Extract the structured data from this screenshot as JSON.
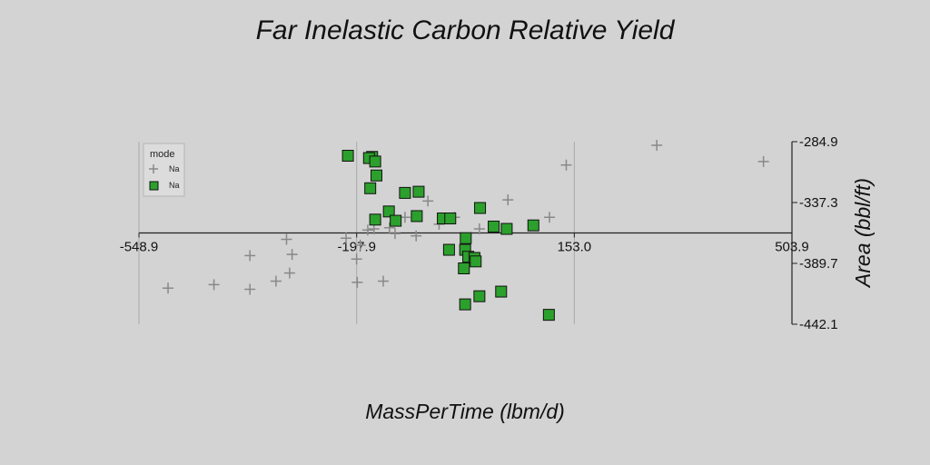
{
  "chart_data": {
    "type": "scatter",
    "title": "Far Inelastic Carbon Relative Yield",
    "xlabel": "MassPerTime (lbm/d)",
    "ylabel": "Area (bbl/ft)",
    "xlim": [
      -548.9,
      503.9
    ],
    "ylim": [
      -442.1,
      -284.9
    ],
    "x_ticks": [
      "-548.9",
      "-197.9",
      "153.0",
      "503.9"
    ],
    "y_ticks": [
      "-284.9",
      "-337.3",
      "-389.7",
      "-442.1"
    ],
    "x_axis_at_y": -363.5,
    "grid": true,
    "legend": {
      "title": "mode",
      "position": "top-left",
      "entries": [
        {
          "label": "Na",
          "marker": "plus",
          "color": "#888888"
        },
        {
          "label": "Na",
          "marker": "square",
          "color": "#2ca02c"
        }
      ]
    },
    "series": [
      {
        "marker": "plus",
        "color": "#888888",
        "points": [
          [
            -502,
            -411
          ],
          [
            -428,
            -408
          ],
          [
            -370,
            -412
          ],
          [
            -328,
            -405
          ],
          [
            -306,
            -398
          ],
          [
            -302,
            -382
          ],
          [
            -311,
            -369
          ],
          [
            -370,
            -383
          ],
          [
            -192,
            -374
          ],
          [
            -198,
            -386
          ],
          [
            -197,
            -406
          ],
          [
            -155,
            -405
          ],
          [
            -180,
            -361
          ],
          [
            -215,
            -368
          ],
          [
            -136,
            -364
          ],
          [
            -102,
            -366
          ],
          [
            -170,
            -360
          ],
          [
            -145,
            -359
          ],
          [
            -120,
            -350
          ],
          [
            -83,
            -336
          ],
          [
            -65,
            -356
          ],
          [
            -40,
            -350
          ],
          [
            0,
            -360
          ],
          [
            46,
            -335
          ],
          [
            113,
            -350
          ],
          [
            140,
            -305
          ],
          [
            286,
            -288
          ],
          [
            458,
            -302
          ]
        ]
      },
      {
        "marker": "square",
        "color": "#2ca02c",
        "points": [
          [
            -212,
            -297
          ],
          [
            -173,
            -298
          ],
          [
            -178,
            -299
          ],
          [
            -168,
            -302
          ],
          [
            -166,
            -314
          ],
          [
            -176,
            -325
          ],
          [
            -168,
            -352
          ],
          [
            -146,
            -345
          ],
          [
            -135,
            -353
          ],
          [
            -120,
            -329
          ],
          [
            -98,
            -328
          ],
          [
            -101,
            -349
          ],
          [
            -59,
            -351
          ],
          [
            -47,
            -351
          ],
          [
            -49,
            -378
          ],
          [
            -22,
            -368
          ],
          [
            1,
            -342
          ],
          [
            -23,
            -378
          ],
          [
            -18,
            -384
          ],
          [
            -8,
            -385
          ],
          [
            -6,
            -388
          ],
          [
            -25,
            -394
          ],
          [
            23,
            -358
          ],
          [
            44,
            -360
          ],
          [
            87,
            -357
          ],
          [
            35,
            -414
          ],
          [
            0,
            -418
          ],
          [
            -23,
            -425
          ],
          [
            112,
            -434
          ]
        ]
      }
    ]
  }
}
